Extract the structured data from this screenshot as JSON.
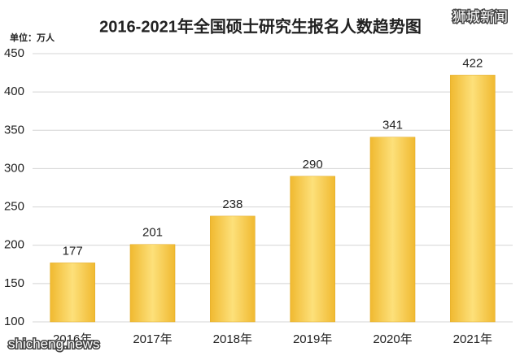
{
  "chart_data": {
    "type": "bar",
    "title": "2016-2021年全国硕士研究生报名人数趋势图",
    "unit": "单位：万人",
    "categories": [
      "2016年",
      "2017年",
      "2018年",
      "2019年",
      "2020年",
      "2021年"
    ],
    "values": [
      177,
      201,
      238,
      290,
      341,
      422
    ],
    "color": "#f5c842",
    "ylim": [
      100,
      450
    ],
    "yticks": [
      100,
      150,
      200,
      250,
      300,
      350,
      400,
      450
    ],
    "grid": true,
    "watermarks": [
      "狮城新闻",
      "shicheng.news"
    ]
  }
}
